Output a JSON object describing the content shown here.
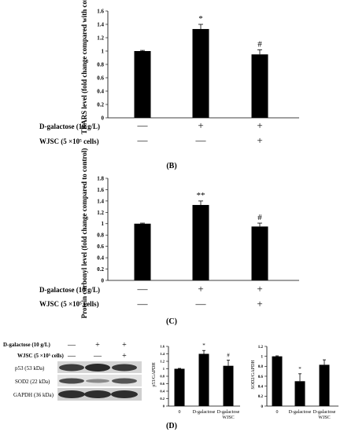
{
  "chart_data": [
    {
      "type": "bar",
      "ylabel": "TBARS level (fold change compared with control)",
      "ylim": [
        0,
        1.6
      ],
      "yticks": [
        "0",
        "0.2",
        "0.4",
        "0.6",
        "0.8",
        "1",
        "1.2",
        "1.4",
        "1.6"
      ],
      "values": [
        1.0,
        1.33,
        0.95
      ],
      "errors": [
        0.01,
        0.07,
        0.07
      ],
      "annotations": [
        "",
        "*",
        "#"
      ],
      "treatment_rows": [
        {
          "label": "D-galactose (10 g/L)",
          "marks": [
            "—",
            "+",
            "+"
          ]
        },
        {
          "label": "WJSC (5 ×10⁵ cells)",
          "marks": [
            "—",
            "—",
            "+"
          ]
        }
      ],
      "panel_label": "(B)"
    },
    {
      "type": "bar",
      "ylabel": "Protein carbonyl level (fold change compared to control)",
      "ylim": [
        0,
        1.8
      ],
      "yticks": [
        "0",
        "0.2",
        "0.4",
        "0.6",
        "0.8",
        "1",
        "1.2",
        "1.4",
        "1.6",
        "1.8"
      ],
      "values": [
        1.0,
        1.33,
        0.95
      ],
      "errors": [
        0.01,
        0.07,
        0.06
      ],
      "annotations": [
        "",
        "**",
        "#"
      ],
      "treatment_rows": [
        {
          "label": "D-galactose (10 g/L)",
          "marks": [
            "—",
            "+",
            "+"
          ]
        },
        {
          "label": "WJSC (5 ×10⁵ cells)",
          "marks": [
            "—",
            "—",
            "+"
          ]
        }
      ],
      "panel_label": "(C)"
    },
    {
      "type": "bar",
      "ylabel": "p53/GAPDH",
      "ylim": [
        0,
        1.6
      ],
      "yticks": [
        "0",
        "0.2",
        "0.4",
        "0.6",
        "0.8",
        "1",
        "1.2",
        "1.4",
        "1.6"
      ],
      "categories": [
        "0",
        "D-galactose",
        "D-galactose WJSC"
      ],
      "values": [
        1.0,
        1.4,
        1.08
      ],
      "errors": [
        0.01,
        0.09,
        0.15
      ],
      "annotations": [
        "",
        "*",
        "#"
      ]
    },
    {
      "type": "bar",
      "ylabel": "SOD2/GAPDH",
      "ylim": [
        0,
        1.2
      ],
      "yticks": [
        "0",
        "0.2",
        "0.4",
        "0.6",
        "0.8",
        "1",
        "1.2"
      ],
      "categories": [
        "0",
        "D-galactose",
        "D-galactose WJSC"
      ],
      "values": [
        1.0,
        0.5,
        0.83
      ],
      "errors": [
        0.01,
        0.15,
        0.1
      ],
      "annotations": [
        "",
        "*",
        ""
      ]
    }
  ],
  "western_blot": {
    "treatment_rows": [
      {
        "label": "D-galactose (10 g/L)",
        "marks": [
          "—",
          "+",
          "+"
        ]
      },
      {
        "label": "WJSC (5 ×10⁵ cells)",
        "marks": [
          "—",
          "—",
          "+"
        ]
      }
    ],
    "bands": [
      "p53 (53 kDa)",
      "SOD2 (22 kDa)",
      "GAPDH (36 kDa)"
    ],
    "panel_label": "(D)"
  }
}
